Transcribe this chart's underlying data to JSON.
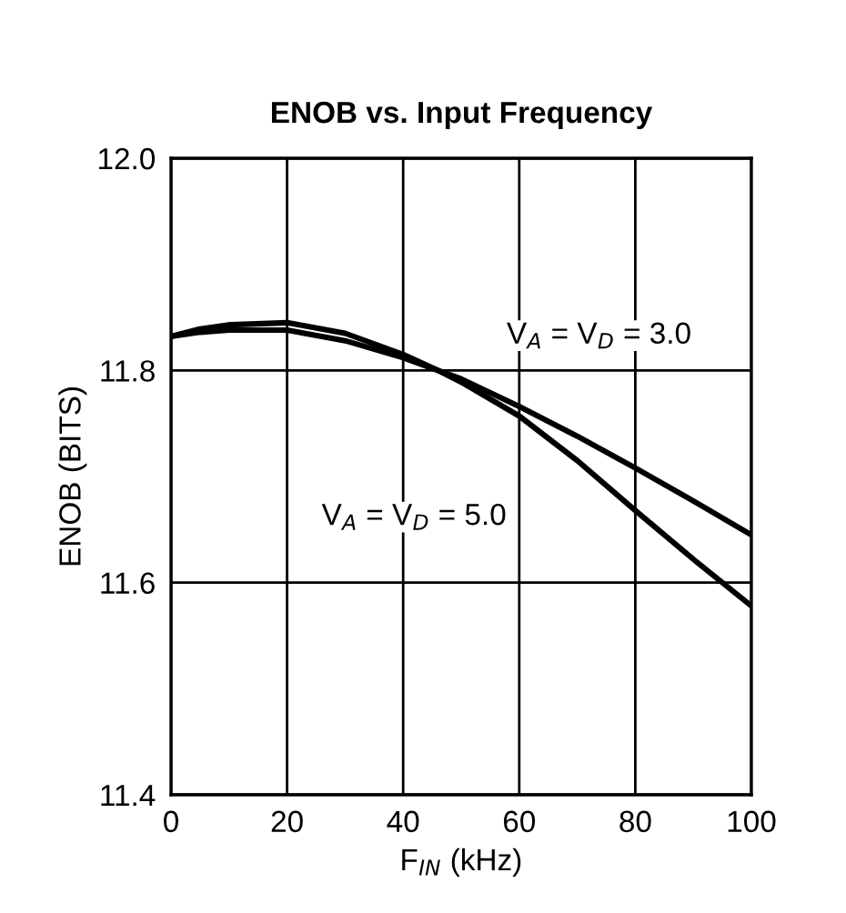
{
  "chart_data": {
    "type": "line",
    "title": "ENOB vs. Input Frequency",
    "xlabel": "F$_{IN}$ (kHz)",
    "ylabel": "ENOB (BITS)",
    "series": [
      {
        "name": "V$_{A}$ = V$_{D}$ = 3.0",
        "color": "#000000",
        "x": [
          0,
          5,
          10,
          20,
          30,
          40,
          46,
          50,
          60,
          70,
          80,
          90,
          100
        ],
        "values": [
          11.832,
          11.836,
          11.838,
          11.838,
          11.828,
          11.812,
          11.8,
          11.792,
          11.766,
          11.738,
          11.708,
          11.677,
          11.645
        ]
      },
      {
        "name": "V$_{A}$ = V$_{D}$ = 5.0",
        "color": "#000000",
        "x": [
          0,
          5,
          10,
          20,
          30,
          40,
          46,
          50,
          60,
          70,
          80,
          90,
          100
        ],
        "values": [
          11.832,
          11.839,
          11.843,
          11.845,
          11.835,
          11.815,
          11.8,
          11.789,
          11.757,
          11.715,
          11.668,
          11.622,
          11.578
        ]
      }
    ],
    "xlim": [
      0,
      100
    ],
    "ylim": [
      11.4,
      12.0
    ],
    "xticks": [
      0,
      20,
      40,
      60,
      80,
      100
    ],
    "yticks": [
      {
        "value": 11.4,
        "label": "11.4"
      },
      {
        "value": 11.6,
        "label": "11.6"
      },
      {
        "value": 11.8,
        "label": "11.8"
      },
      {
        "value": 12.0,
        "label": "12.0"
      }
    ],
    "grid": true,
    "marker": "none",
    "line_style": "solid",
    "legend": false
  }
}
